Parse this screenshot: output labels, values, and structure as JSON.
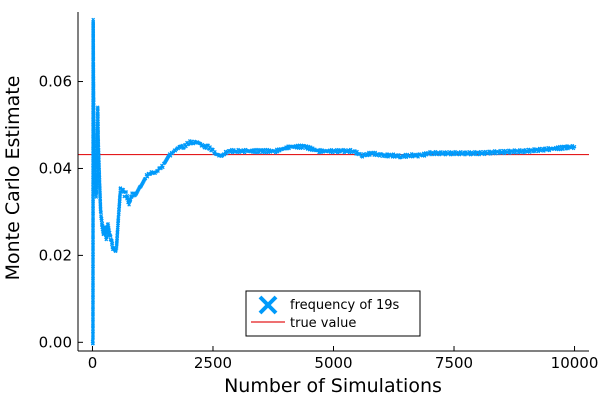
{
  "chart_data": {
    "type": "scatter",
    "xlabel": "Number of Simulations",
    "ylabel": "Monte Carlo Estimate",
    "xlim": [
      -300,
      10300
    ],
    "ylim": [
      -0.002,
      0.076
    ],
    "x_ticks": [
      0,
      2500,
      5000,
      7500,
      10000
    ],
    "x_tick_labels": [
      "0",
      "2500",
      "5000",
      "7500",
      "10000"
    ],
    "y_ticks": [
      0.0,
      0.02,
      0.04,
      0.06
    ],
    "y_tick_labels": [
      "0.00",
      "0.02",
      "0.04",
      "0.06"
    ],
    "grid": false,
    "legend_position": "bottom-center",
    "series": [
      {
        "name": "frequency of 19s",
        "kind": "scatter",
        "marker": "x",
        "color": "#009AFA",
        "anchors": [
          [
            1,
            0.0
          ],
          [
            10,
            0.0
          ],
          [
            15,
            0.074
          ],
          [
            18,
            0.065
          ],
          [
            22,
            0.058
          ],
          [
            28,
            0.05
          ],
          [
            35,
            0.045
          ],
          [
            45,
            0.04
          ],
          [
            55,
            0.037
          ],
          [
            65,
            0.035
          ],
          [
            80,
            0.034
          ],
          [
            100,
            0.047
          ],
          [
            110,
            0.054
          ],
          [
            120,
            0.046
          ],
          [
            135,
            0.041
          ],
          [
            150,
            0.036
          ],
          [
            170,
            0.03
          ],
          [
            200,
            0.027
          ],
          [
            230,
            0.025
          ],
          [
            260,
            0.026
          ],
          [
            290,
            0.024
          ],
          [
            320,
            0.027
          ],
          [
            350,
            0.025
          ],
          [
            380,
            0.024
          ],
          [
            420,
            0.022
          ],
          [
            460,
            0.021
          ],
          [
            500,
            0.022
          ],
          [
            540,
            0.029
          ],
          [
            580,
            0.035
          ],
          [
            620,
            0.035
          ],
          [
            660,
            0.034
          ],
          [
            700,
            0.034
          ],
          [
            760,
            0.032
          ],
          [
            820,
            0.034
          ],
          [
            900,
            0.034
          ],
          [
            1000,
            0.036
          ],
          [
            1100,
            0.038
          ],
          [
            1200,
            0.039
          ],
          [
            1300,
            0.039
          ],
          [
            1400,
            0.04
          ],
          [
            1500,
            0.041
          ],
          [
            1600,
            0.043
          ],
          [
            1700,
            0.044
          ],
          [
            1800,
            0.045
          ],
          [
            1900,
            0.045
          ],
          [
            2000,
            0.046
          ],
          [
            2100,
            0.046
          ],
          [
            2200,
            0.046
          ],
          [
            2300,
            0.045
          ],
          [
            2400,
            0.045
          ],
          [
            2500,
            0.044
          ],
          [
            2600,
            0.043
          ],
          [
            2700,
            0.043
          ],
          [
            2800,
            0.044
          ],
          [
            3000,
            0.044
          ],
          [
            3200,
            0.044
          ],
          [
            3500,
            0.044
          ],
          [
            3800,
            0.044
          ],
          [
            4100,
            0.045
          ],
          [
            4400,
            0.045
          ],
          [
            4700,
            0.044
          ],
          [
            5000,
            0.044
          ],
          [
            5200,
            0.044
          ],
          [
            5400,
            0.044
          ],
          [
            5600,
            0.043
          ],
          [
            5800,
            0.0435
          ],
          [
            6000,
            0.043
          ],
          [
            6200,
            0.043
          ],
          [
            6400,
            0.0428
          ],
          [
            6600,
            0.043
          ],
          [
            6800,
            0.043
          ],
          [
            7000,
            0.0435
          ],
          [
            7500,
            0.0435
          ],
          [
            8000,
            0.0435
          ],
          [
            8500,
            0.0438
          ],
          [
            9000,
            0.044
          ],
          [
            9500,
            0.0445
          ],
          [
            9800,
            0.0448
          ],
          [
            10000,
            0.045
          ]
        ]
      },
      {
        "name": "true value",
        "kind": "hline",
        "color": "#E41A1C",
        "y": 0.0432
      }
    ]
  }
}
